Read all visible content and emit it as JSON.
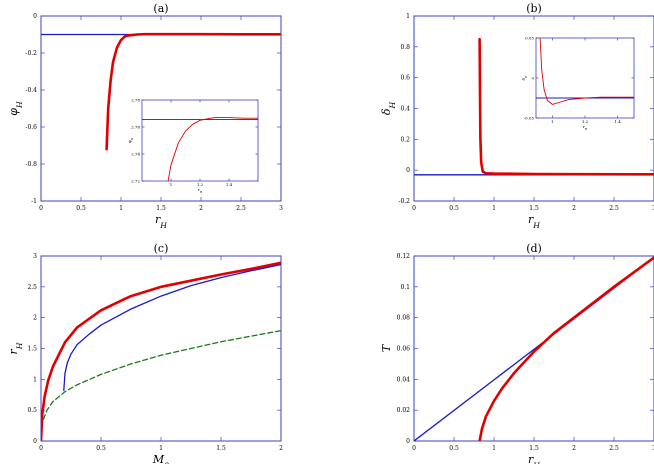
{
  "colors": {
    "axis": "#4040c0",
    "blue": "#1a1acc",
    "red": "#e00000",
    "green": "#1a7a1a"
  },
  "chart_data": [
    {
      "type": "line",
      "title": "(a)",
      "xlabel": "r_H",
      "ylabel": "φ_H",
      "xlim": [
        0,
        3
      ],
      "ylim": [
        -1,
        0
      ],
      "xticks": [
        "0",
        "0.5",
        "1",
        "1.5",
        "2",
        "2.5",
        "3"
      ],
      "yticks": [
        "-1",
        "-0.8",
        "-0.6",
        "-0.4",
        "-0.2",
        "0"
      ],
      "series": [
        {
          "color": "blue",
          "x": [
            0,
            3
          ],
          "y": [
            -0.1,
            -0.1
          ]
        },
        {
          "color": "red",
          "x": [
            0.82,
            0.84,
            0.87,
            0.9,
            0.95,
            1.0,
            1.05,
            1.1,
            1.2,
            1.3,
            1.5,
            2.0,
            2.5,
            3.0
          ],
          "y": [
            -0.72,
            -0.5,
            -0.35,
            -0.25,
            -0.17,
            -0.13,
            -0.11,
            -0.105,
            -0.1,
            -0.098,
            -0.098,
            -0.098,
            -0.099,
            -0.099
          ]
        }
      ],
      "inset": {
        "xlabel": "r_H",
        "ylabel": "φ_H",
        "xlim": [
          0.8,
          1.6
        ],
        "ylim": [
          2.72,
          2.78
        ],
        "xticks": [
          "1",
          "1.2",
          "1.4"
        ],
        "yticks": [
          "2.72",
          "2.74",
          "2.76",
          "2.78"
        ],
        "series": [
          {
            "color": "blue",
            "x": [
              0.8,
              1.6
            ],
            "y": [
              2.7655,
              2.7655
            ]
          },
          {
            "color": "red",
            "x": [
              0.98,
              1.0,
              1.05,
              1.1,
              1.15,
              1.2,
              1.3,
              1.4,
              1.5,
              1.6
            ],
            "y": [
              2.72,
              2.732,
              2.748,
              2.757,
              2.762,
              2.765,
              2.767,
              2.767,
              2.7665,
              2.7665
            ]
          }
        ]
      }
    },
    {
      "type": "line",
      "title": "(b)",
      "xlabel": "r_H",
      "ylabel": "δ_H",
      "xlim": [
        0,
        3
      ],
      "ylim": [
        -0.2,
        1
      ],
      "xticks": [
        "0",
        "0.5",
        "1",
        "1.5",
        "2",
        "2.5",
        "3"
      ],
      "yticks": [
        "-0.2",
        "0",
        "0.2",
        "0.4",
        "0.6",
        "0.8",
        "1"
      ],
      "series": [
        {
          "color": "blue",
          "x": [
            0,
            3
          ],
          "y": [
            -0.03,
            -0.03
          ]
        },
        {
          "color": "red",
          "x": [
            0.82,
            0.825,
            0.83,
            0.84,
            0.86,
            0.9,
            1.0,
            1.5,
            2.0,
            3.0
          ],
          "y": [
            0.85,
            0.5,
            0.2,
            0.05,
            -0.01,
            -0.02,
            -0.022,
            -0.025,
            -0.026,
            -0.027
          ]
        }
      ],
      "inset": {
        "xlabel": "r_H",
        "ylabel": "δ_H",
        "xlim": [
          0.9,
          1.5
        ],
        "ylim": [
          -0.05,
          0.05
        ],
        "xticks": [
          "1",
          "1.2",
          "1.4"
        ],
        "yticks": [
          "-0.05",
          "0",
          "0.05"
        ],
        "series": [
          {
            "color": "blue",
            "x": [
              0.9,
              1.5
            ],
            "y": [
              -0.025,
              -0.025
            ]
          },
          {
            "color": "red",
            "x": [
              0.925,
              0.935,
              0.95,
              0.97,
              1.0,
              1.05,
              1.1,
              1.2,
              1.3,
              1.5
            ],
            "y": [
              0.05,
              0.01,
              -0.015,
              -0.028,
              -0.033,
              -0.03,
              -0.027,
              -0.025,
              -0.024,
              -0.024
            ]
          }
        ]
      }
    },
    {
      "type": "line",
      "title": "(c)",
      "xlabel": "M_0",
      "ylabel": "r_H",
      "xlim": [
        0,
        2
      ],
      "ylim": [
        0,
        3
      ],
      "xticks": [
        "0",
        "0.5",
        "1",
        "1.5",
        "2"
      ],
      "yticks": [
        "0",
        "0.5",
        "1",
        "1.5",
        "2",
        "2.5",
        "3"
      ],
      "series": [
        {
          "color": "red",
          "x": [
            0,
            0.01,
            0.03,
            0.06,
            0.1,
            0.2,
            0.3,
            0.5,
            0.75,
            1.0,
            1.25,
            1.5,
            1.75,
            2.0
          ],
          "y": [
            0,
            0.42,
            0.72,
            0.98,
            1.21,
            1.6,
            1.84,
            2.12,
            2.35,
            2.5,
            2.6,
            2.7,
            2.79,
            2.89
          ]
        },
        {
          "color": "blue",
          "x": [
            0.19,
            0.2,
            0.22,
            0.25,
            0.3,
            0.4,
            0.5,
            0.75,
            1.0,
            1.25,
            1.5,
            1.75,
            2.0
          ],
          "y": [
            0.82,
            1.1,
            1.27,
            1.41,
            1.56,
            1.73,
            1.88,
            2.14,
            2.35,
            2.52,
            2.65,
            2.76,
            2.86
          ]
        },
        {
          "color": "green",
          "dashed": true,
          "x": [
            0.02,
            0.05,
            0.1,
            0.2,
            0.3,
            0.5,
            0.75,
            1.0,
            1.25,
            1.5,
            1.75,
            2.0
          ],
          "y": [
            0.35,
            0.5,
            0.64,
            0.8,
            0.91,
            1.08,
            1.25,
            1.39,
            1.5,
            1.61,
            1.7,
            1.79
          ]
        }
      ]
    },
    {
      "type": "line",
      "title": "(d)",
      "xlabel": "r_H",
      "ylabel": "T",
      "xlim": [
        0,
        3
      ],
      "ylim": [
        0,
        0.12
      ],
      "xticks": [
        "0",
        "0.5",
        "1",
        "1.5",
        "2",
        "2.5",
        "3"
      ],
      "yticks": [
        "0",
        "0.02",
        "0.04",
        "0.06",
        "0.08",
        "0.1",
        "0.12"
      ],
      "series": [
        {
          "color": "blue",
          "x": [
            0,
            3
          ],
          "y": [
            0,
            0.119
          ]
        },
        {
          "color": "red",
          "x": [
            0.82,
            0.85,
            0.9,
            1.0,
            1.1,
            1.25,
            1.5,
            1.75,
            2.0,
            2.5,
            3.0
          ],
          "y": [
            0,
            0.008,
            0.016,
            0.026,
            0.034,
            0.044,
            0.058,
            0.07,
            0.08,
            0.1,
            0.119
          ]
        }
      ]
    }
  ]
}
